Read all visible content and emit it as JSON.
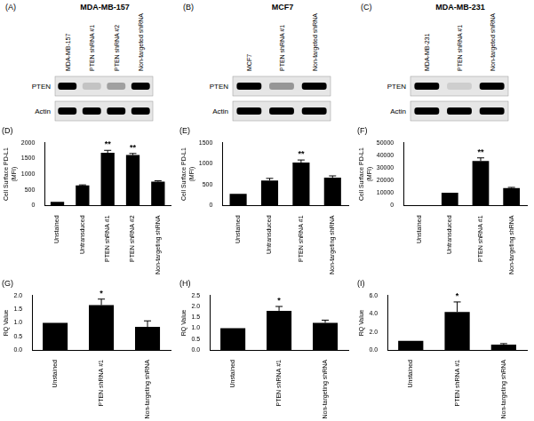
{
  "blots": [
    {
      "panel": "(A)",
      "title": "MDA-MB-157",
      "lanes": [
        "MDA-MB-157",
        "PTEN shRNA #1",
        "PTEN shRNA #2",
        "Non-targeted shRNA"
      ],
      "rows": [
        {
          "name": "PTEN",
          "bands": [
            1,
            0.15,
            0.3,
            1
          ]
        },
        {
          "name": "Actin",
          "bands": [
            1,
            1,
            1,
            1
          ]
        }
      ]
    },
    {
      "panel": "(B)",
      "title": "MCF7",
      "lanes": [
        "MCF7",
        "PTEN shRNA #1",
        "Non-targeted shRNA"
      ],
      "rows": [
        {
          "name": "PTEN",
          "bands": [
            1,
            0.35,
            1
          ]
        },
        {
          "name": "Actin",
          "bands": [
            1,
            1,
            1
          ]
        }
      ]
    },
    {
      "panel": "(C)",
      "title": "MDA-MB-231",
      "lanes": [
        "MDA-MB-231",
        "PTEN shRNA #1",
        "Non-targeted shRNA"
      ],
      "rows": [
        {
          "name": "PTEN",
          "bands": [
            1,
            0.1,
            1
          ]
        },
        {
          "name": "Actin",
          "bands": [
            1,
            1,
            1
          ]
        }
      ]
    }
  ],
  "chart_data": [
    {
      "type": "bar",
      "panel": "(D)",
      "y_label": [
        "Cell Surface PD-L1",
        "(MFI)"
      ],
      "categories": [
        "Unstained",
        "Untransduced",
        "PTEN shRNA #1",
        "PTEN shRNA #2",
        "Non-targeting shRNA"
      ],
      "values": [
        120,
        640,
        1680,
        1610,
        760
      ],
      "errors": [
        0,
        20,
        80,
        50,
        30
      ],
      "annotations": [
        {
          "category": "PTEN shRNA #1",
          "text": "**"
        },
        {
          "category": "PTEN shRNA #2",
          "text": "**"
        }
      ],
      "color": "#000000",
      "ylim": [
        0,
        2000
      ],
      "yticks": [
        0,
        500,
        1000,
        1500,
        2000
      ],
      "grid": false
    },
    {
      "type": "bar",
      "panel": "(E)",
      "y_label": [
        "Cell Surface PD-L1",
        "(MFI)"
      ],
      "categories": [
        "Unstained",
        "Untransduced",
        "PTEN shRNA #1",
        "Non-targeting shRNA"
      ],
      "values": [
        280,
        600,
        1030,
        670
      ],
      "errors": [
        0,
        50,
        60,
        40
      ],
      "annotations": [
        {
          "category": "PTEN shRNA #1",
          "text": "**"
        }
      ],
      "color": "#000000",
      "ylim": [
        0,
        1500
      ],
      "yticks": [
        0,
        500,
        1000,
        1500
      ],
      "grid": false
    },
    {
      "type": "bar",
      "panel": "(F)",
      "y_label": [
        "Cell Surface PD-L1",
        "(MFI)"
      ],
      "categories": [
        "Unstained",
        "Untransduced",
        "PTEN shRNA #1",
        "Non-targeting shRNA"
      ],
      "values": [
        200,
        10300,
        35500,
        14000
      ],
      "errors": [
        0,
        0,
        2500,
        500
      ],
      "annotations": [
        {
          "category": "PTEN shRNA #1",
          "text": "**"
        }
      ],
      "color": "#000000",
      "ylim": [
        0,
        50000
      ],
      "yticks": [
        0,
        10000,
        20000,
        30000,
        40000,
        50000
      ],
      "grid": false
    },
    {
      "type": "bar",
      "panel": "(G)",
      "y_label": [
        "RQ Value"
      ],
      "categories": [
        "Unstained",
        "PTEN shRNA #1",
        "Non-targeting shRNA"
      ],
      "values": [
        1.0,
        1.65,
        0.85
      ],
      "errors": [
        0,
        0.22,
        0.22
      ],
      "annotations": [
        {
          "category": "PTEN shRNA #1",
          "text": "*"
        }
      ],
      "color": "#000000",
      "ylim": [
        0,
        2.0
      ],
      "yticks": [
        {
          "value": 0,
          "label": "0.0"
        },
        0.5,
        {
          "value": 1,
          "label": "1.0"
        },
        1.5,
        {
          "value": 2,
          "label": "2.0"
        }
      ],
      "grid": false
    },
    {
      "type": "bar",
      "panel": "(H)",
      "y_label": [
        "RQ Value"
      ],
      "categories": [
        "Unstained",
        "PTEN shRNA #1",
        "Non-targeting shRNA"
      ],
      "values": [
        1.0,
        1.8,
        1.25
      ],
      "errors": [
        0,
        0.2,
        0.12
      ],
      "annotations": [
        {
          "category": "PTEN shRNA #1",
          "text": "*"
        }
      ],
      "color": "#000000",
      "ylim": [
        0,
        2.5
      ],
      "yticks": [
        {
          "value": 0,
          "label": "0.0"
        },
        0.5,
        {
          "value": 1,
          "label": "1.0"
        },
        1.5,
        {
          "value": 2,
          "label": "2.0"
        },
        2.5
      ],
      "grid": false
    },
    {
      "type": "bar",
      "panel": "(I)",
      "y_label": [
        "RQ Value"
      ],
      "categories": [
        "Unstained",
        "PTEN shRNA #1",
        "Non-targeting shRNA"
      ],
      "values": [
        1.0,
        4.2,
        0.6
      ],
      "errors": [
        0,
        1.1,
        0.1
      ],
      "annotations": [
        {
          "category": "PTEN shRNA #1",
          "text": "*"
        }
      ],
      "color": "#000000",
      "ylim": [
        0,
        6.0
      ],
      "yticks": [
        {
          "value": 0,
          "label": "0.0"
        },
        {
          "value": 2,
          "label": "2.0"
        },
        {
          "value": 4,
          "label": "4.0"
        },
        {
          "value": 6,
          "label": "6.0"
        }
      ],
      "grid": false
    }
  ]
}
